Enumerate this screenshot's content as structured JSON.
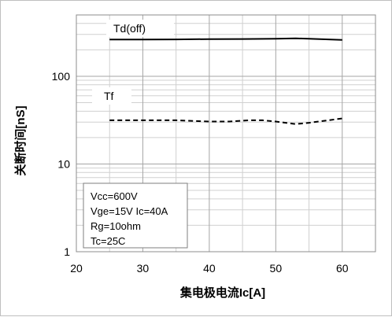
{
  "chart_data": {
    "type": "line",
    "xlabel": "集电极电流Ic[A]",
    "ylabel": "关断时间[nS]",
    "xlim": [
      20,
      65
    ],
    "ylim": [
      1,
      500
    ],
    "y_scale": "log",
    "x_ticks": [
      20,
      30,
      40,
      50,
      60
    ],
    "y_ticks": [
      1,
      10,
      100
    ],
    "grid": true,
    "series": [
      {
        "style": "solid",
        "color": "#000000",
        "x": [
          25,
          30,
          35,
          40,
          45,
          50,
          53,
          55,
          60
        ],
        "y": [
          262,
          262,
          263,
          265,
          266,
          268,
          270,
          268,
          260
        ]
      },
      {
        "style": "dashed",
        "color": "#000000",
        "x": [
          25,
          30,
          35,
          40,
          43,
          46,
          48,
          50,
          53,
          55,
          60
        ],
        "y": [
          31.5,
          31.5,
          31.5,
          30.5,
          30.5,
          31.5,
          31.5,
          30.5,
          28.5,
          29.5,
          33
        ]
      }
    ],
    "annotations": [
      {
        "text": "Td(off)",
        "x": 30,
        "y": 380
      },
      {
        "text": "Tf",
        "x": 27,
        "y": 65
      }
    ],
    "conditions": [
      "Vcc=600V",
      "Vge=15V Ic=40A",
      "Rg=10ohm",
      "Tc=25C"
    ]
  }
}
